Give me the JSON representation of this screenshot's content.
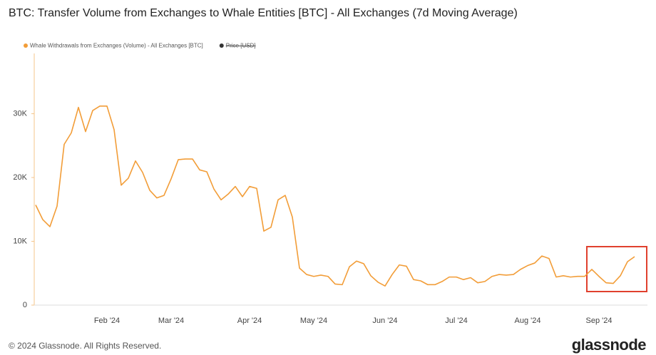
{
  "chart_data": {
    "type": "line",
    "title": "BTC: Transfer Volume from Exchanges to Whale Entities [BTC] - All Exchanges (7d Moving Average)",
    "categories": [
      null,
      null,
      null,
      null,
      null,
      null,
      null,
      null,
      null,
      null,
      "Feb '24",
      null,
      null,
      null,
      null,
      null,
      null,
      null,
      null,
      "Mar '24",
      null,
      null,
      null,
      null,
      null,
      null,
      null,
      null,
      null,
      null,
      "Apr '24",
      null,
      null,
      null,
      null,
      null,
      null,
      null,
      null,
      "May '24",
      null,
      null,
      null,
      null,
      null,
      null,
      null,
      null,
      null,
      "Jun '24",
      null,
      null,
      null,
      null,
      null,
      null,
      null,
      null,
      null,
      "Jul '24",
      null,
      null,
      null,
      null,
      null,
      null,
      null,
      null,
      null,
      "Aug '24",
      null,
      null,
      null,
      null,
      null,
      null,
      null,
      null,
      null,
      "Sep '24",
      null,
      null,
      null,
      null,
      null
    ],
    "series": [
      {
        "name": "Whale Withdrawals from Exchanges (Volume) - All Exchanges [BTC]",
        "color": "#f29d38",
        "values": [
          15700,
          13400,
          12300,
          15500,
          25200,
          27000,
          31000,
          27200,
          30500,
          31200,
          31200,
          27500,
          18800,
          19900,
          22600,
          20800,
          18000,
          16800,
          17200,
          19800,
          22800,
          22900,
          22900,
          21200,
          20900,
          18200,
          16500,
          17400,
          18600,
          17000,
          18600,
          18300,
          11600,
          12200,
          16500,
          17200,
          13800,
          5800,
          4800,
          4500,
          4700,
          4500,
          3300,
          3200,
          6000,
          6900,
          6500,
          4600,
          3600,
          3000,
          4800,
          6300,
          6100,
          4000,
          3800,
          3200,
          3200,
          3700,
          4400,
          4400,
          4000,
          4300,
          3500,
          3700,
          4500,
          4800,
          4700,
          4800,
          5600,
          6200,
          6600,
          7700,
          7300,
          4400,
          4600,
          4400,
          4500,
          4500,
          5600,
          4500,
          3500,
          3400,
          4600,
          6800,
          7600
        ]
      }
    ],
    "hidden_series": [
      {
        "name": "Price [USD]",
        "color": "#333333"
      }
    ],
    "ylim": [
      0,
      39000
    ],
    "yticks": [
      0,
      {
        "value": 10000,
        "label": "10K"
      },
      {
        "value": 20000,
        "label": "20K"
      },
      {
        "value": 30000,
        "label": "30K"
      }
    ],
    "grid": false
  },
  "footer": {
    "copyright": "© 2024 Glassnode. All Rights Reserved.",
    "logo": "glassnode"
  }
}
